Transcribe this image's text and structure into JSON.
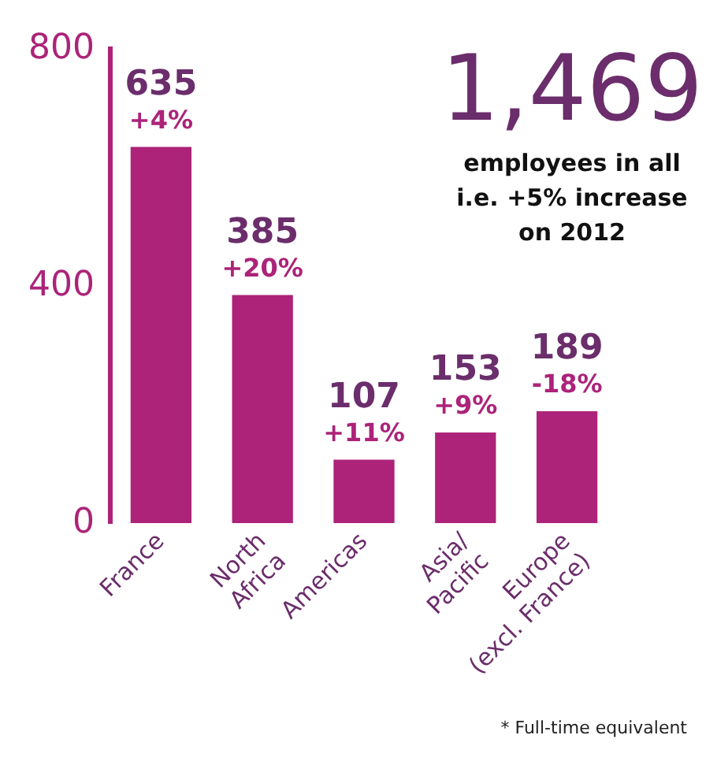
{
  "chart_data": {
    "type": "bar",
    "categories": [
      "France",
      "North\nAfrica",
      "Americas",
      "Asia/\nPacific",
      "Europe\n(excl. France)"
    ],
    "values": [
      635,
      385,
      107,
      153,
      189
    ],
    "color": "#ac2379",
    "ylim": [
      0,
      800
    ],
    "yticks": [
      0,
      400,
      800
    ],
    "grid": false,
    "data_labels": true,
    "annotations": [
      "1,469",
      "employees in all",
      "i.e. +5% increase",
      "on 2012",
      "* Full-time equivalent",
      {
        "text": "+4%",
        "x": "France",
        "y": 635
      },
      {
        "text": "+20%",
        "x": "North\nAfrica",
        "y": 385
      },
      {
        "text": "+11%",
        "x": "Americas",
        "y": 107
      },
      {
        "text": "+9%",
        "x": "Asia/\nPacific",
        "y": 153
      },
      {
        "text": "-18%",
        "x": "Europe\n(excl. France)",
        "y": 189
      }
    ]
  }
}
